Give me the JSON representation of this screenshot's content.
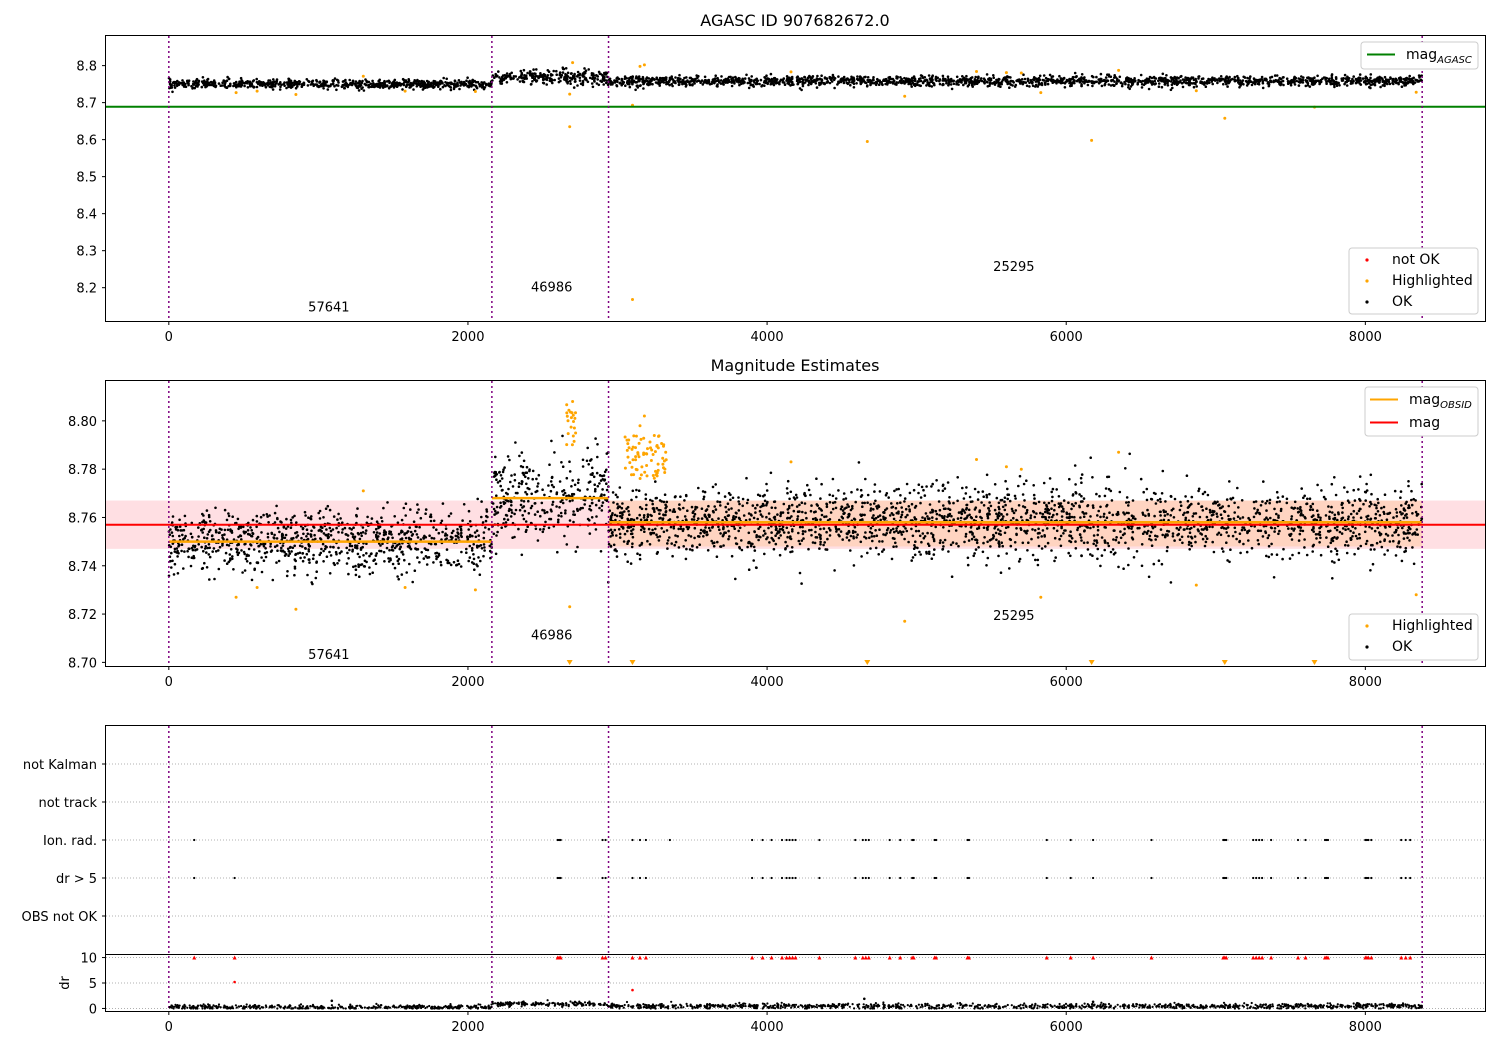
{
  "chart_data": [
    {
      "type": "scatter",
      "title": "AGASC ID 907682672.0",
      "xlim": [
        -420,
        8800
      ],
      "ylim": [
        8.11,
        8.88
      ],
      "xticks": [
        0,
        2000,
        4000,
        6000,
        8000
      ],
      "yticks": [
        8.2,
        8.3,
        8.4,
        8.5,
        8.6,
        8.7,
        8.8
      ],
      "obsid_boundaries": [
        0,
        2160,
        2940,
        8380
      ],
      "obsid_labels": [
        {
          "text": "57641",
          "x": 1070,
          "y": 8.135
        },
        {
          "text": "46986",
          "x": 2560,
          "y": 8.19
        },
        {
          "text": "25295",
          "x": 5650,
          "y": 8.245
        }
      ],
      "mag_agasc": 8.689,
      "series": [
        {
          "name": "not OK",
          "color": "#ff0000"
        },
        {
          "name": "Highlighted",
          "color": "#ffa500"
        },
        {
          "name": "OK",
          "color": "#000000"
        }
      ],
      "segments": [
        {
          "x0": 0,
          "x1": 2160,
          "mean": 8.75,
          "sd": 0.006
        },
        {
          "x0": 2160,
          "x1": 2940,
          "mean": 8.769,
          "sd": 0.01
        },
        {
          "x0": 2940,
          "x1": 8380,
          "mean": 8.758,
          "sd": 0.007
        }
      ],
      "highlighted_points": [
        {
          "x": 2680,
          "y": 8.635
        },
        {
          "x": 4670,
          "y": 8.595
        },
        {
          "x": 6170,
          "y": 8.598
        },
        {
          "x": 7060,
          "y": 8.658
        },
        {
          "x": 3100,
          "y": 8.168
        },
        {
          "x": 3100,
          "y": 8.693
        },
        {
          "x": 7660,
          "y": 8.688
        },
        {
          "x": 4920,
          "y": 8.717
        },
        {
          "x": 2680,
          "y": 8.723
        },
        {
          "x": 2700,
          "y": 8.808
        },
        {
          "x": 3150,
          "y": 8.798
        },
        {
          "x": 3180,
          "y": 8.802
        },
        {
          "x": 450,
          "y": 8.727
        },
        {
          "x": 590,
          "y": 8.731
        },
        {
          "x": 850,
          "y": 8.722
        },
        {
          "x": 1300,
          "y": 8.771
        },
        {
          "x": 1580,
          "y": 8.731
        },
        {
          "x": 2050,
          "y": 8.73
        },
        {
          "x": 5830,
          "y": 8.727
        },
        {
          "x": 6870,
          "y": 8.732
        },
        {
          "x": 8340,
          "y": 8.728
        },
        {
          "x": 5400,
          "y": 8.784
        },
        {
          "x": 6350,
          "y": 8.787
        },
        {
          "x": 4160,
          "y": 8.783
        },
        {
          "x": 5600,
          "y": 8.781
        },
        {
          "x": 5700,
          "y": 8.78
        }
      ],
      "legend_top": [
        {
          "label": "mag",
          "sub": "AGASC",
          "color": "#008000"
        }
      ],
      "legend_bottom": [
        {
          "label": "not OK",
          "color": "#ff0000"
        },
        {
          "label": "Highlighted",
          "color": "#ffa500"
        },
        {
          "label": "OK",
          "color": "#000000"
        }
      ]
    },
    {
      "type": "scatter",
      "title": "Magnitude Estimates",
      "xlim": [
        -420,
        8800
      ],
      "ylim": [
        8.6985,
        8.8165
      ],
      "xticks": [
        0,
        2000,
        4000,
        6000,
        8000
      ],
      "yticks": [
        8.7,
        8.72,
        8.74,
        8.76,
        8.78,
        8.8
      ],
      "ytick_labels": [
        "8.70",
        "8.72",
        "8.74",
        "8.76",
        "8.78",
        "8.80"
      ],
      "obsid_labels": [
        {
          "text": "57641",
          "x": 1070,
          "y": 8.7015
        },
        {
          "text": "46986",
          "x": 2560,
          "y": 8.7095
        },
        {
          "text": "25295",
          "x": 5650,
          "y": 8.7175
        }
      ],
      "mag": 8.757,
      "mag_band": [
        8.747,
        8.767
      ],
      "obsid_mags": [
        {
          "x0": 0,
          "x1": 2160,
          "mag": 8.75
        },
        {
          "x0": 2160,
          "x1": 2940,
          "mag": 8.768
        },
        {
          "x0": 2940,
          "x1": 8380,
          "mag": 8.758
        }
      ],
      "obsid_bands": [
        {
          "x0": 2940,
          "x1": 8380,
          "low": 8.748,
          "high": 8.767
        }
      ],
      "off_scale_markers": [
        2680,
        3100,
        4670,
        6170,
        7060,
        7660
      ],
      "legend_top": [
        {
          "label": "mag",
          "sub": "OBSID",
          "color": "#ffa500"
        },
        {
          "label": "mag",
          "sub": "",
          "color": "#ff0000"
        }
      ],
      "legend_bottom": [
        {
          "label": "Highlighted",
          "color": "#ffa500"
        },
        {
          "label": "OK",
          "color": "#000000"
        }
      ]
    },
    {
      "type": "scatter",
      "xlim": [
        -420,
        8800
      ],
      "xticks": [
        0,
        2000,
        4000,
        6000,
        8000
      ],
      "flag_rows": [
        "not Kalman",
        "not track",
        "Ion. rad.",
        "dr > 5",
        "OBS not OK"
      ],
      "ion_rad_x": [
        170,
        2600,
        2610,
        2620,
        2900,
        2920,
        3100,
        3150,
        3190,
        3350,
        3900,
        3970,
        4030,
        4100,
        4130,
        4150,
        4170,
        4190,
        4350,
        4590,
        4640,
        4660,
        4680,
        4820,
        4890,
        4970,
        4980,
        5120,
        5130,
        5340,
        5350,
        5870,
        6030,
        6180,
        6570,
        7050,
        7060,
        7070,
        7250,
        7270,
        7290,
        7310,
        7370,
        7550,
        7600,
        7730,
        7740,
        7750,
        8000,
        8010,
        8020,
        8040,
        8240,
        8270,
        8300
      ],
      "dr5_x": [
        170,
        440,
        2600,
        2610,
        2620,
        2900,
        2920,
        3100,
        3150,
        3190,
        3900,
        3970,
        4030,
        4100,
        4130,
        4150,
        4170,
        4190,
        4350,
        4590,
        4640,
        4660,
        4680,
        4820,
        4890,
        4970,
        4980,
        5120,
        5130,
        5340,
        5350,
        5870,
        6030,
        6180,
        6570,
        7050,
        7060,
        7070,
        7250,
        7270,
        7290,
        7310,
        7370,
        7550,
        7600,
        7730,
        7740,
        7750,
        8000,
        8010,
        8020,
        8040,
        8240,
        8270,
        8300
      ],
      "dr_ylabel": "dr",
      "dr_yticks": [
        0,
        5,
        10
      ],
      "dr_ylim": [
        -0.5,
        10.5
      ],
      "dr_outliers": [
        {
          "x": 440,
          "y": 5.2,
          "color": "#ff0000"
        },
        {
          "x": 3100,
          "y": 3.6,
          "color": "#ff0000"
        },
        {
          "x": 1090,
          "y": 1.5,
          "color": "#000000"
        },
        {
          "x": 4650,
          "y": 1.9,
          "color": "#000000"
        },
        {
          "x": 6180,
          "y": 1.3,
          "color": "#000000"
        }
      ]
    }
  ]
}
